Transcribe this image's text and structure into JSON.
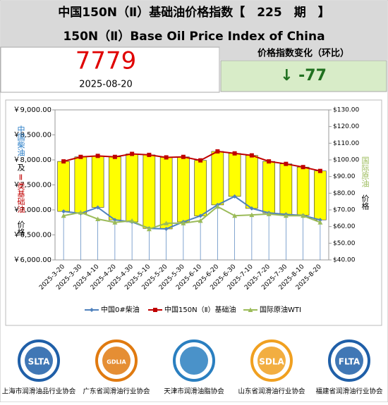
{
  "header": {
    "title": "中国150N（Ⅱ）基础油价格指数【　225　期　】",
    "subtitle": "150N（Ⅱ）Base Oil Price Index of China"
  },
  "index": {
    "value": "7779",
    "date": "2025-08-20",
    "change_label": "价格指数变化（环比）",
    "change": "↓ -77"
  },
  "chart_data": {
    "type": "bar-line",
    "categories": [
      "2025-3-20",
      "2025-3-30",
      "2025-4-10",
      "2025-4-20",
      "2025-4-30",
      "2025-5-10",
      "2025-5-20",
      "2025-5-30",
      "2025-6-10",
      "2025-6-20",
      "2025-6-30",
      "2025-7-10",
      "2025-7-20",
      "2025-7-30",
      "2025-8-10",
      "2025-8-20"
    ],
    "series": [
      {
        "name": "中国0#柴油",
        "color": "#4f81bd",
        "values": [
          6970,
          6930,
          7050,
          6800,
          6760,
          6630,
          6620,
          6760,
          6880,
          7100,
          7270,
          7030,
          6940,
          6910,
          6890,
          6800
        ]
      },
      {
        "name": "中国150N（Ⅱ）基础油",
        "color": "#c00000",
        "values": [
          7970,
          8060,
          8080,
          8060,
          8120,
          8100,
          8050,
          8060,
          7990,
          8170,
          8130,
          8090,
          7970,
          7920,
          7856,
          7779
        ]
      },
      {
        "name": "国际原油WTI",
        "color": "#9bbb59",
        "axis": "y2",
        "values": [
          66.5,
          68.5,
          64.5,
          62.5,
          63.5,
          58.5,
          62,
          62,
          63.5,
          72,
          66.5,
          67,
          67.5,
          66.5,
          66.5,
          62.5
        ]
      }
    ],
    "bar_color": "#ffff00",
    "ylim": [
      6000,
      9000
    ],
    "yticks": [
      {
        "value": 6000,
        "label": "￥6,000.00"
      },
      {
        "value": 6500,
        "label": "￥6,500.00"
      },
      {
        "value": 7000,
        "label": "￥7,000.00"
      },
      {
        "value": 7500,
        "label": "￥7,500.00"
      },
      {
        "value": 8000,
        "label": "￥8,000.00"
      },
      {
        "value": 8500,
        "label": "￥8,500.00"
      },
      {
        "value": 9000,
        "label": "￥9,000.00"
      }
    ],
    "y2lim": [
      40,
      130
    ],
    "y2ticks": [
      {
        "value": 40,
        "label": "$40.00"
      },
      {
        "value": 50,
        "label": "$50.00"
      },
      {
        "value": 60,
        "label": "$60.00"
      },
      {
        "value": 70,
        "label": "$70.00"
      },
      {
        "value": 80,
        "label": "$80.00"
      },
      {
        "value": 90,
        "label": "$90.00"
      },
      {
        "value": 100,
        "label": "$100.00"
      },
      {
        "value": 110,
        "label": "$110.00"
      },
      {
        "value": 120,
        "label": "$120.00"
      },
      {
        "value": 130,
        "label": "$130.00"
      }
    ],
    "y_title": [
      {
        "text": "中国柴油",
        "color": "#1f77c4"
      },
      {
        "text": "及",
        "color": "#000000"
      },
      {
        "text": "Ⅱ类基础油",
        "color": "#c00000"
      },
      {
        "text": "价格",
        "color": "#000000"
      }
    ],
    "y2_title": [
      {
        "text": "国际原油",
        "color": "#9bbb59"
      },
      {
        "text": "价格",
        "color": "#000000"
      }
    ]
  },
  "logos": [
    {
      "abbr": "SLTA",
      "name": "上海市润滑油品行业协会",
      "color": "#1f5fa8"
    },
    {
      "abbr": "GDLIA",
      "name": "广东省润滑油行业协会",
      "color": "#e07a10"
    },
    {
      "abbr": "",
      "name": "天津市润滑油脂协会",
      "color": "#2a7fc0"
    },
    {
      "abbr": "SDLA",
      "name": "山东省润滑油行业协会",
      "color": "#f0a020"
    },
    {
      "abbr": "FLTA",
      "name": "福建省润滑油行业协会",
      "color": "#1f5fa8"
    }
  ]
}
